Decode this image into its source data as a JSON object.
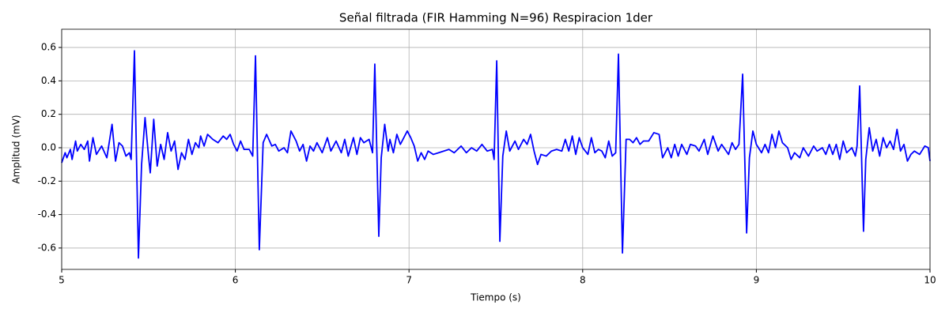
{
  "chart_data": {
    "type": "line",
    "title": "Señal filtrada (FIR Hamming N=96) Respiracion 1der",
    "xlabel": "Tiempo (s)",
    "ylabel": "Amplitud (mV)",
    "color": "#0000ff",
    "grid": true,
    "xlim": [
      5,
      10
    ],
    "ylim": [
      -0.728,
      0.709
    ],
    "xticks": [
      5,
      6,
      7,
      8,
      9,
      10
    ],
    "yticks": [
      -0.6,
      -0.4,
      -0.2,
      {
        "value": 0,
        "label": "0.0"
      },
      0.2,
      0.4,
      0.6
    ],
    "x": [
      5.0,
      5.02,
      5.03,
      5.05,
      5.06,
      5.08,
      5.09,
      5.11,
      5.13,
      5.15,
      5.16,
      5.18,
      5.2,
      5.23,
      5.26,
      5.29,
      5.31,
      5.33,
      5.35,
      5.37,
      5.39,
      5.4,
      5.419,
      5.442,
      5.46,
      5.48,
      5.5,
      5.51,
      5.53,
      5.55,
      5.57,
      5.59,
      5.61,
      5.63,
      5.65,
      5.67,
      5.69,
      5.71,
      5.73,
      5.75,
      5.77,
      5.79,
      5.8,
      5.82,
      5.84,
      5.87,
      5.9,
      5.93,
      5.95,
      5.97,
      5.99,
      6.01,
      6.03,
      6.05,
      6.08,
      6.1,
      6.116,
      6.138,
      6.16,
      6.18,
      6.21,
      6.23,
      6.25,
      6.28,
      6.3,
      6.32,
      6.35,
      6.37,
      6.39,
      6.41,
      6.43,
      6.45,
      6.47,
      6.5,
      6.53,
      6.55,
      6.58,
      6.61,
      6.63,
      6.65,
      6.68,
      6.7,
      6.72,
      6.74,
      6.77,
      6.79,
      6.803,
      6.826,
      6.84,
      6.86,
      6.88,
      6.89,
      6.91,
      6.93,
      6.95,
      6.97,
      6.99,
      7.01,
      7.03,
      7.05,
      7.07,
      7.09,
      7.11,
      7.14,
      7.17,
      7.2,
      7.23,
      7.26,
      7.3,
      7.33,
      7.36,
      7.39,
      7.42,
      7.45,
      7.48,
      7.49,
      7.505,
      7.523,
      7.54,
      7.56,
      7.58,
      7.61,
      7.63,
      7.66,
      7.68,
      7.7,
      7.72,
      7.74,
      7.76,
      7.79,
      7.82,
      7.85,
      7.88,
      7.9,
      7.92,
      7.94,
      7.96,
      7.98,
      8.0,
      8.03,
      8.05,
      8.07,
      8.09,
      8.11,
      8.13,
      8.15,
      8.17,
      8.19,
      8.206,
      8.229,
      8.25,
      8.27,
      8.29,
      8.31,
      8.33,
      8.35,
      8.38,
      8.41,
      8.44,
      8.46,
      8.49,
      8.51,
      8.53,
      8.55,
      8.57,
      8.6,
      8.62,
      8.65,
      8.67,
      8.7,
      8.72,
      8.75,
      8.78,
      8.8,
      8.82,
      8.84,
      8.86,
      8.88,
      8.9,
      8.921,
      8.944,
      8.96,
      8.98,
      9.0,
      9.03,
      9.05,
      9.07,
      9.09,
      9.11,
      9.13,
      9.15,
      9.18,
      9.2,
      9.22,
      9.25,
      9.27,
      9.3,
      9.33,
      9.35,
      9.38,
      9.4,
      9.42,
      9.44,
      9.46,
      9.48,
      9.5,
      9.52,
      9.55,
      9.57,
      9.58,
      9.595,
      9.617,
      9.63,
      9.65,
      9.67,
      9.69,
      9.71,
      9.73,
      9.75,
      9.77,
      9.79,
      9.81,
      9.83,
      9.85,
      9.87,
      9.89,
      9.91,
      9.94,
      9.97,
      9.99,
      10.0
    ],
    "values": [
      -0.09,
      -0.03,
      -0.06,
      -0.01,
      -0.07,
      0.04,
      -0.02,
      0.02,
      -0.01,
      0.04,
      -0.08,
      0.06,
      -0.04,
      0.01,
      -0.06,
      0.14,
      -0.08,
      0.03,
      0.01,
      -0.05,
      -0.03,
      -0.07,
      0.58,
      -0.66,
      -0.1,
      0.18,
      -0.05,
      -0.15,
      0.17,
      -0.11,
      0.02,
      -0.07,
      0.09,
      -0.02,
      0.04,
      -0.13,
      -0.03,
      -0.07,
      0.05,
      -0.04,
      0.03,
      0.0,
      0.07,
      0.01,
      0.08,
      0.05,
      0.03,
      0.07,
      0.05,
      0.08,
      0.02,
      -0.02,
      0.04,
      -0.01,
      -0.01,
      -0.05,
      0.55,
      -0.61,
      0.03,
      0.08,
      0.01,
      0.02,
      -0.02,
      0.0,
      -0.03,
      0.1,
      0.04,
      -0.02,
      0.02,
      -0.08,
      0.01,
      -0.02,
      0.03,
      -0.03,
      0.06,
      -0.02,
      0.04,
      -0.03,
      0.05,
      -0.05,
      0.06,
      -0.04,
      0.06,
      0.03,
      0.05,
      -0.03,
      0.5,
      -0.53,
      -0.06,
      0.14,
      -0.02,
      0.05,
      -0.03,
      0.08,
      0.02,
      0.06,
      0.1,
      0.06,
      0.01,
      -0.08,
      -0.03,
      -0.07,
      -0.02,
      -0.04,
      -0.03,
      -0.02,
      -0.01,
      -0.03,
      0.01,
      -0.03,
      0.0,
      -0.02,
      0.02,
      -0.02,
      -0.01,
      -0.07,
      0.52,
      -0.56,
      -0.05,
      0.1,
      -0.02,
      0.04,
      -0.01,
      0.05,
      0.02,
      0.08,
      -0.02,
      -0.1,
      -0.04,
      -0.05,
      -0.02,
      -0.01,
      -0.02,
      0.05,
      -0.02,
      0.07,
      -0.04,
      0.06,
      0.0,
      -0.04,
      0.06,
      -0.03,
      -0.01,
      -0.02,
      -0.06,
      0.04,
      -0.05,
      -0.03,
      0.56,
      -0.63,
      0.05,
      0.05,
      0.03,
      0.06,
      0.02,
      0.04,
      0.04,
      0.09,
      0.08,
      -0.06,
      0.0,
      -0.06,
      0.02,
      -0.05,
      0.02,
      -0.04,
      0.02,
      0.01,
      -0.02,
      0.05,
      -0.04,
      0.07,
      -0.02,
      0.02,
      -0.01,
      -0.04,
      0.03,
      -0.01,
      0.02,
      0.44,
      -0.51,
      -0.06,
      0.1,
      0.02,
      -0.03,
      0.02,
      -0.03,
      0.08,
      0.0,
      0.1,
      0.03,
      0.0,
      -0.07,
      -0.03,
      -0.06,
      0.0,
      -0.05,
      0.01,
      -0.02,
      0.0,
      -0.04,
      0.02,
      -0.04,
      0.02,
      -0.07,
      0.04,
      -0.03,
      0.0,
      -0.05,
      0.01,
      0.37,
      -0.5,
      -0.07,
      0.12,
      -0.02,
      0.05,
      -0.05,
      0.06,
      0.0,
      0.04,
      -0.01,
      0.11,
      -0.02,
      0.02,
      -0.08,
      -0.04,
      -0.02,
      -0.04,
      0.01,
      0.0,
      -0.08
    ]
  }
}
